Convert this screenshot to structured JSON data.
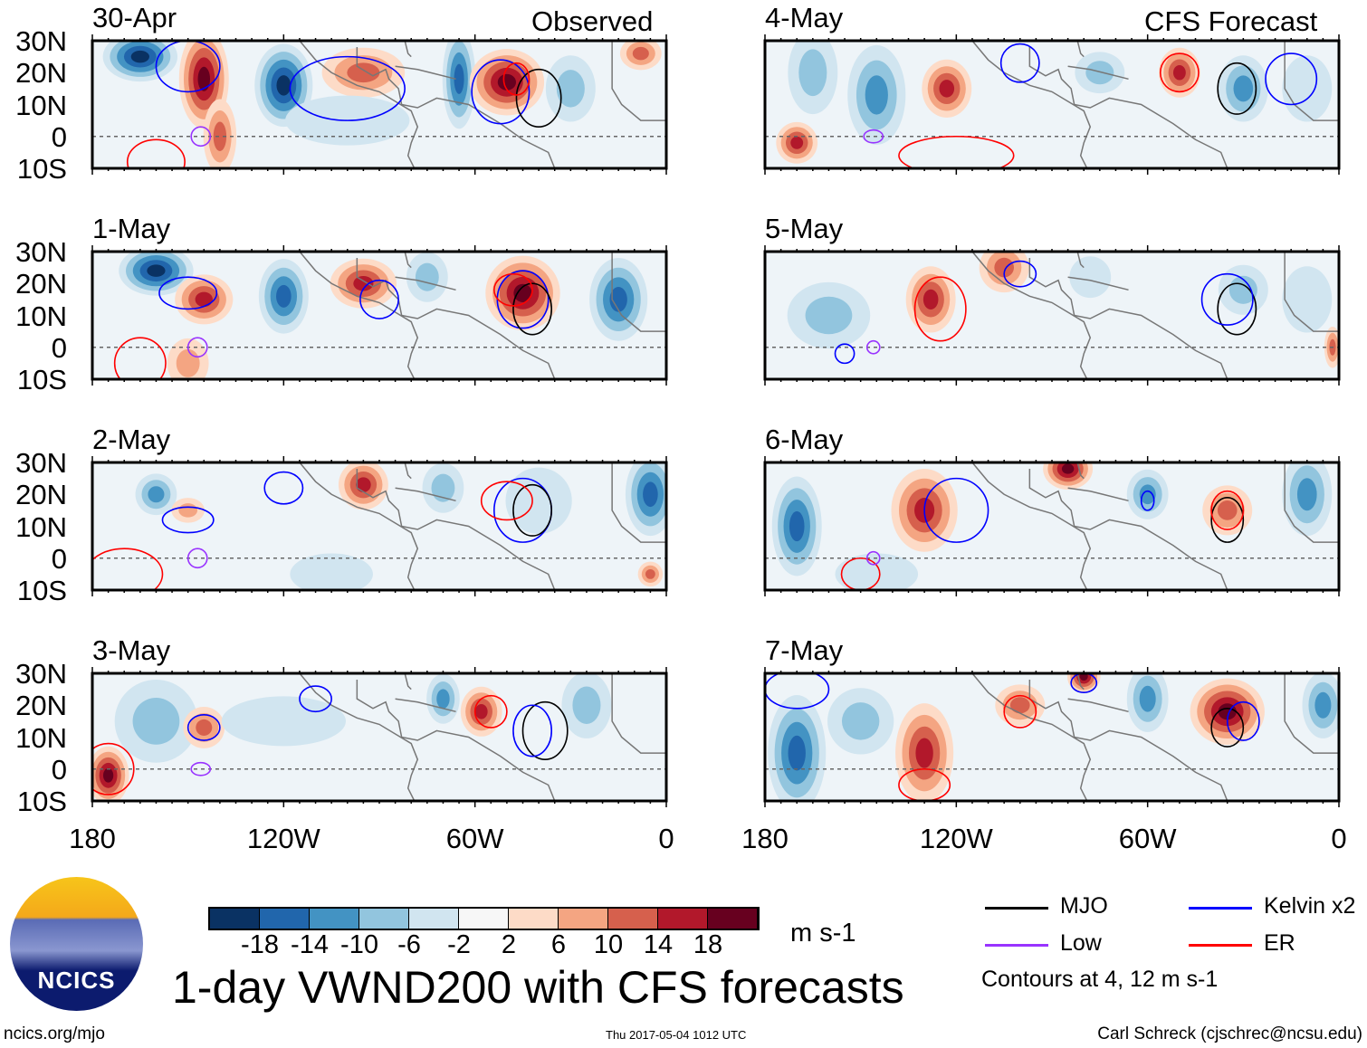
{
  "title": "1-day VWND200 with CFS forecasts",
  "labels": {
    "observed": "Observed",
    "forecast": "CFS Forecast"
  },
  "lat_ticks": [
    "30N",
    "20N",
    "10N",
    "0",
    "10S"
  ],
  "lon_ticks": [
    "180",
    "120W",
    "60W",
    "0"
  ],
  "colorbar": {
    "colors": [
      "#0a3263",
      "#2166ac",
      "#4393c3",
      "#92c5de",
      "#d1e5f0",
      "#f7f7f7",
      "#fddbc7",
      "#f4a582",
      "#d6604d",
      "#b2182b",
      "#67001f"
    ],
    "ticks": [
      "-18",
      "-14",
      "-10",
      "-6",
      "-2",
      "2",
      "6",
      "10",
      "14",
      "18"
    ],
    "units": "m s-1"
  },
  "legend": {
    "items": [
      {
        "label": "MJO",
        "color": "#000000"
      },
      {
        "label": "Kelvin x2",
        "color": "#0000ff"
      },
      {
        "label": "Low",
        "color": "#9933ff"
      },
      {
        "label": "ER",
        "color": "#ff0000"
      }
    ],
    "note": "Contours at 4, 12 m s-1"
  },
  "logo": {
    "text": "NCICS"
  },
  "footer": {
    "url": "ncics.org/mjo",
    "timestamp": "Thu 2017-05-04 1012 UTC",
    "author": "Carl Schreck (cjschrec@ncsu.edu)"
  },
  "panels": [
    {
      "date": "30-Apr",
      "blobs": [
        [
          165,
          25,
          -20,
          9,
          6
        ],
        [
          145,
          18,
          19,
          6,
          12
        ],
        [
          140,
          0,
          12,
          4,
          9
        ],
        [
          120,
          16,
          -20,
          7,
          10
        ],
        [
          95,
          20,
          13,
          10,
          6
        ],
        [
          65,
          18,
          -18,
          4,
          12
        ],
        [
          50,
          17,
          20,
          9,
          8
        ],
        [
          30,
          15,
          -9,
          6,
          8
        ],
        [
          100,
          5,
          -6,
          15,
          6
        ],
        [
          8,
          26,
          10,
          5,
          4
        ]
      ],
      "contours": [
        [
          "K",
          52,
          14,
          9,
          10
        ],
        [
          "M",
          40,
          12,
          7,
          9
        ],
        [
          "E",
          47,
          18,
          4,
          5
        ],
        [
          "K",
          150,
          22,
          10,
          8
        ],
        [
          "L",
          146,
          0,
          3,
          3
        ],
        [
          "E",
          160,
          -8,
          9,
          7
        ],
        [
          "K",
          100,
          15,
          18,
          10
        ]
      ]
    },
    {
      "date": "1-May",
      "blobs": [
        [
          160,
          24,
          -20,
          9,
          6
        ],
        [
          145,
          15,
          16,
          7,
          6
        ],
        [
          120,
          16,
          -18,
          6,
          9
        ],
        [
          95,
          20,
          14,
          8,
          6
        ],
        [
          75,
          22,
          -10,
          5,
          6
        ],
        [
          45,
          17,
          18,
          9,
          9
        ],
        [
          15,
          15,
          -16,
          7,
          10
        ],
        [
          150,
          -5,
          8,
          5,
          6
        ]
      ],
      "contours": [
        [
          "K",
          45,
          15,
          8,
          9
        ],
        [
          "M",
          42,
          12,
          6,
          8
        ],
        [
          "E",
          48,
          18,
          6,
          5
        ],
        [
          "K",
          150,
          17,
          9,
          5
        ],
        [
          "L",
          147,
          0,
          3,
          3
        ],
        [
          "E",
          165,
          -5,
          8,
          8
        ],
        [
          "K",
          90,
          15,
          6,
          6
        ]
      ]
    },
    {
      "date": "2-May",
      "blobs": [
        [
          160,
          20,
          -14,
          5,
          5
        ],
        [
          150,
          15,
          8,
          4,
          3
        ],
        [
          95,
          23,
          16,
          6,
          6
        ],
        [
          70,
          22,
          -10,
          5,
          6
        ],
        [
          40,
          18,
          -6,
          8,
          8
        ],
        [
          5,
          20,
          -16,
          6,
          10
        ],
        [
          105,
          -5,
          -4,
          10,
          5
        ],
        [
          5,
          -5,
          12,
          3,
          3
        ]
      ],
      "contours": [
        [
          "K",
          45,
          15,
          9,
          10
        ],
        [
          "M",
          42,
          15,
          6,
          8
        ],
        [
          "E",
          50,
          18,
          8,
          6
        ],
        [
          "K",
          120,
          22,
          6,
          5
        ],
        [
          "K",
          150,
          12,
          8,
          4
        ],
        [
          "L",
          147,
          0,
          3,
          3
        ],
        [
          "E",
          170,
          -5,
          12,
          8
        ]
      ]
    },
    {
      "date": "3-May",
      "blobs": [
        [
          160,
          15,
          -8,
          10,
          10
        ],
        [
          145,
          13,
          10,
          5,
          5
        ],
        [
          175,
          -2,
          18,
          5,
          7
        ],
        [
          70,
          22,
          -14,
          4,
          6
        ],
        [
          58,
          18,
          16,
          5,
          6
        ],
        [
          25,
          20,
          -8,
          6,
          8
        ],
        [
          120,
          15,
          -4,
          15,
          6
        ]
      ],
      "contours": [
        [
          "M",
          38,
          12,
          7,
          9
        ],
        [
          "K",
          42,
          12,
          6,
          8
        ],
        [
          "K",
          145,
          13,
          5,
          4
        ],
        [
          "E",
          55,
          18,
          5,
          5
        ],
        [
          "L",
          146,
          0,
          3,
          2
        ],
        [
          "K",
          110,
          22,
          5,
          4
        ],
        [
          "E",
          175,
          0,
          8,
          8
        ]
      ]
    },
    {
      "date": "4-May",
      "blobs": [
        [
          165,
          20,
          -10,
          6,
          10
        ],
        [
          145,
          13,
          -14,
          7,
          12
        ],
        [
          123,
          15,
          16,
          6,
          7
        ],
        [
          170,
          -2,
          16,
          5,
          5
        ],
        [
          75,
          20,
          -8,
          6,
          5
        ],
        [
          50,
          20,
          14,
          5,
          6
        ],
        [
          30,
          15,
          -12,
          6,
          8
        ],
        [
          10,
          15,
          -6,
          6,
          8
        ]
      ],
      "contours": [
        [
          "M",
          32,
          15,
          6,
          8
        ],
        [
          "E",
          50,
          20,
          6,
          6
        ],
        [
          "K",
          100,
          23,
          6,
          6
        ],
        [
          "K",
          15,
          18,
          8,
          8
        ],
        [
          "L",
          146,
          0,
          3,
          2
        ],
        [
          "E",
          120,
          -6,
          18,
          6
        ]
      ]
    },
    {
      "date": "5-May",
      "blobs": [
        [
          160,
          10,
          -10,
          10,
          8
        ],
        [
          128,
          15,
          16,
          6,
          8
        ],
        [
          105,
          25,
          10,
          6,
          6
        ],
        [
          78,
          22,
          -6,
          5,
          5
        ],
        [
          30,
          18,
          -8,
          6,
          6
        ],
        [
          10,
          15,
          -6,
          6,
          8
        ],
        [
          2,
          0,
          12,
          2,
          5
        ]
      ],
      "contours": [
        [
          "M",
          32,
          12,
          6,
          8
        ],
        [
          "K",
          35,
          15,
          8,
          8
        ],
        [
          "E",
          125,
          12,
          8,
          10
        ],
        [
          "K",
          155,
          -2,
          3,
          3
        ],
        [
          "L",
          146,
          0,
          2,
          2
        ],
        [
          "K",
          100,
          23,
          5,
          4
        ]
      ]
    },
    {
      "date": "6-May",
      "blobs": [
        [
          170,
          10,
          -18,
          6,
          12
        ],
        [
          130,
          15,
          14,
          8,
          10
        ],
        [
          85,
          28,
          18,
          6,
          5
        ],
        [
          60,
          20,
          -12,
          5,
          6
        ],
        [
          35,
          15,
          12,
          6,
          6
        ],
        [
          10,
          20,
          -12,
          6,
          10
        ],
        [
          145,
          -5,
          -6,
          10,
          5
        ]
      ],
      "contours": [
        [
          "M",
          35,
          12,
          5,
          7
        ],
        [
          "E",
          35,
          15,
          5,
          6
        ],
        [
          "K",
          120,
          15,
          10,
          10
        ],
        [
          "K",
          60,
          18,
          2,
          3
        ],
        [
          "E",
          150,
          -5,
          6,
          5
        ],
        [
          "L",
          146,
          0,
          2,
          2
        ]
      ]
    },
    {
      "date": "7-May",
      "blobs": [
        [
          170,
          5,
          -16,
          7,
          14
        ],
        [
          130,
          5,
          16,
          7,
          12
        ],
        [
          100,
          20,
          12,
          6,
          5
        ],
        [
          80,
          29,
          18,
          4,
          4
        ],
        [
          60,
          22,
          -14,
          5,
          8
        ],
        [
          35,
          18,
          18,
          9,
          8
        ],
        [
          5,
          20,
          -12,
          5,
          8
        ],
        [
          150,
          15,
          -8,
          8,
          8
        ]
      ],
      "contours": [
        [
          "M",
          35,
          13,
          5,
          6
        ],
        [
          "K",
          30,
          15,
          5,
          6
        ],
        [
          "E",
          100,
          18,
          5,
          5
        ],
        [
          "K",
          170,
          25,
          10,
          6
        ],
        [
          "E",
          130,
          -5,
          8,
          5
        ],
        [
          "K",
          80,
          27,
          4,
          3
        ]
      ]
    }
  ]
}
